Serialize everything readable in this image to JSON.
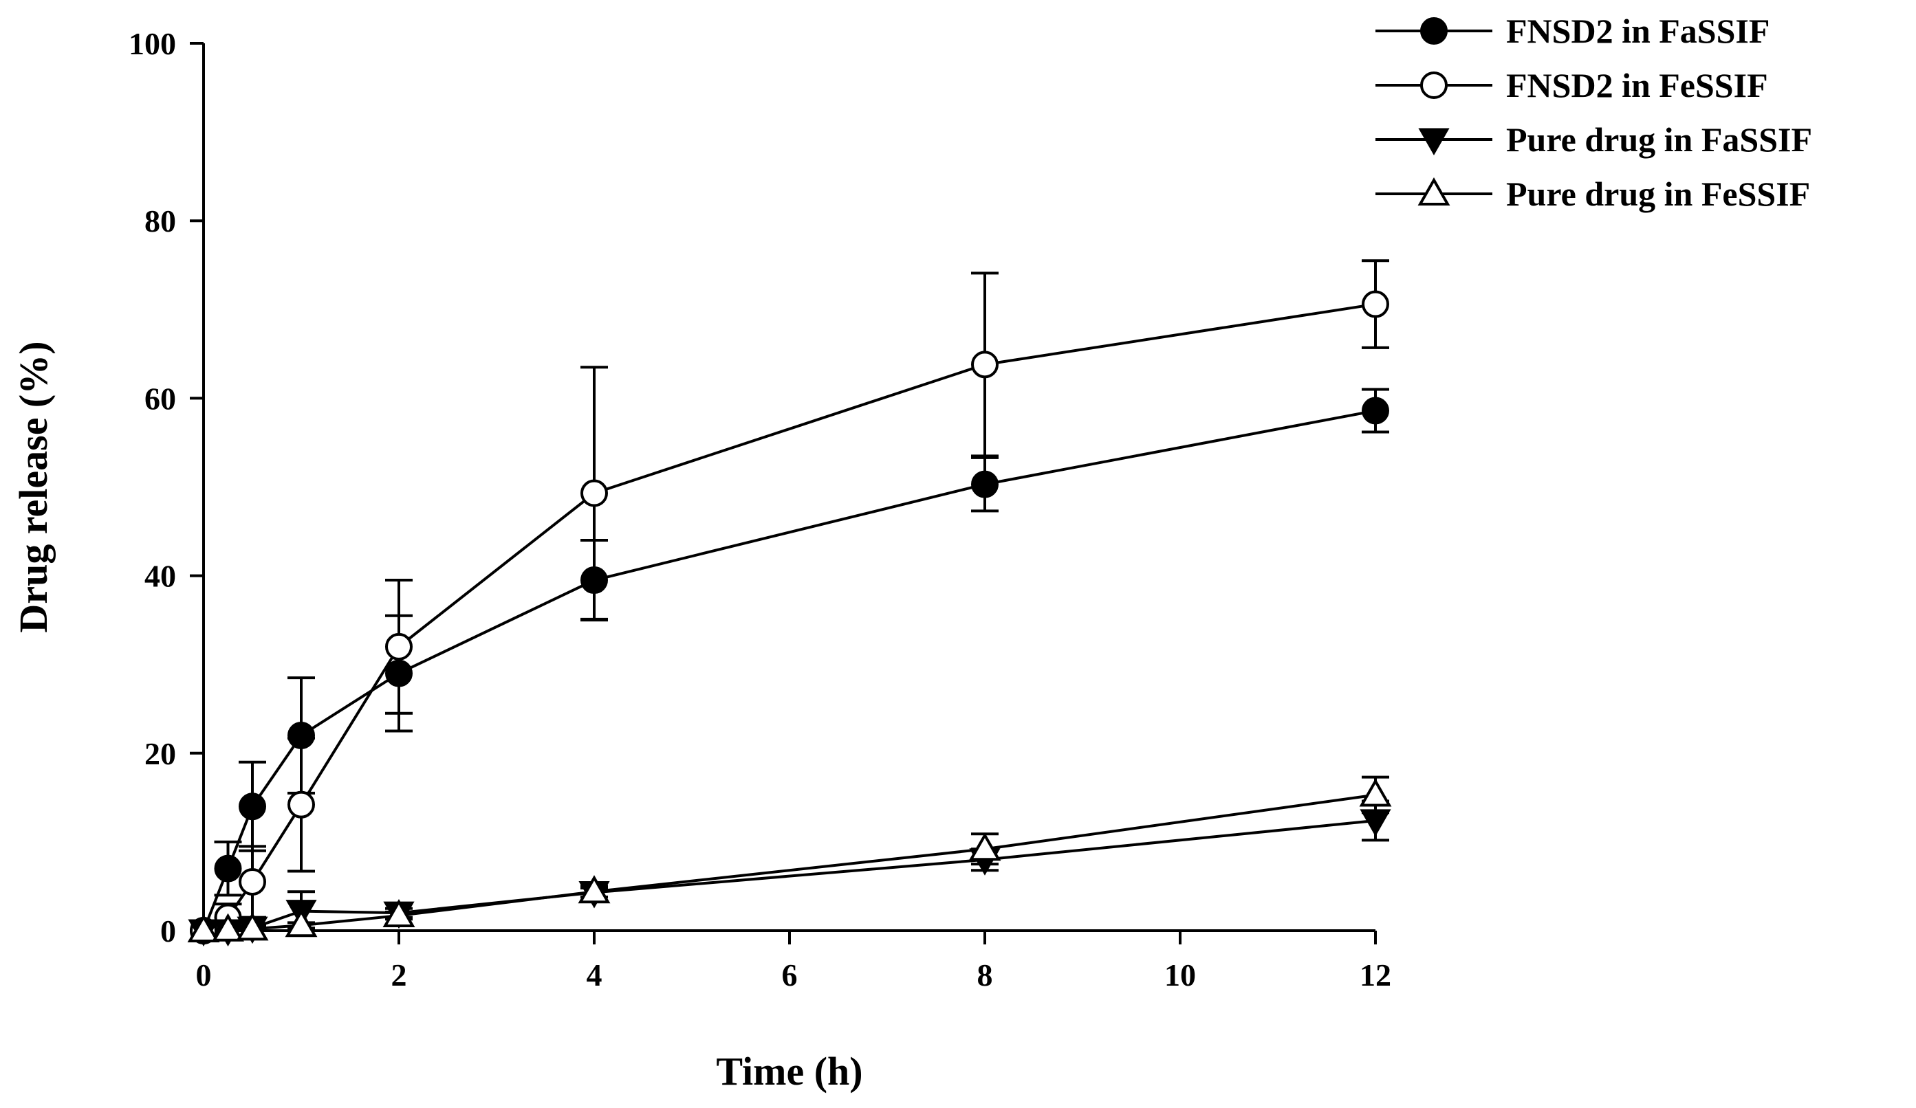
{
  "chart_data": {
    "type": "line",
    "title": "",
    "xlabel": "Time (h)",
    "ylabel": "Drug release (%)",
    "xlim": [
      0,
      12
    ],
    "ylim": [
      0,
      100
    ],
    "xticks": [
      0,
      2,
      4,
      6,
      8,
      10,
      12
    ],
    "yticks": [
      0,
      20,
      40,
      60,
      80,
      100
    ],
    "grid": false,
    "legend_position": "top-right",
    "series": [
      {
        "name": "FNSD2 in FaSSIF",
        "marker": "filled-circle",
        "x": [
          0,
          0.25,
          0.5,
          1,
          2,
          4,
          8,
          12
        ],
        "y": [
          0,
          7,
          14,
          22,
          29,
          39.5,
          50.3,
          58.6
        ],
        "err": [
          0,
          3,
          5,
          6.5,
          6.5,
          4.5,
          3,
          2.4
        ]
      },
      {
        "name": "FNSD2 in FeSSIF",
        "marker": "open-circle",
        "x": [
          0,
          0.25,
          0.5,
          1,
          2,
          4,
          8,
          12
        ],
        "y": [
          0,
          1.5,
          5.5,
          14.2,
          32,
          49.3,
          63.8,
          70.6
        ],
        "err": [
          0,
          1.5,
          4,
          7.5,
          7.5,
          14.2,
          10.3,
          4.9
        ]
      },
      {
        "name": "Pure drug in FaSSIF",
        "marker": "filled-triangle-down",
        "x": [
          0,
          0.25,
          0.5,
          1,
          2,
          4,
          8,
          12
        ],
        "y": [
          0,
          0,
          0.3,
          2.2,
          2,
          4.3,
          8,
          12.4
        ],
        "err": [
          0,
          0,
          0.3,
          2.2,
          0.5,
          0.5,
          1.2,
          2.2
        ]
      },
      {
        "name": "Pure drug in FeSSIF",
        "marker": "open-triangle-up",
        "x": [
          0,
          0.25,
          0.5,
          1,
          2,
          4,
          8,
          12
        ],
        "y": [
          0,
          0.1,
          0.2,
          0.6,
          1.7,
          4.4,
          9.2,
          15.3
        ],
        "err": [
          0,
          0.1,
          0.2,
          0.3,
          0.4,
          0.6,
          1.7,
          2
        ]
      }
    ]
  }
}
